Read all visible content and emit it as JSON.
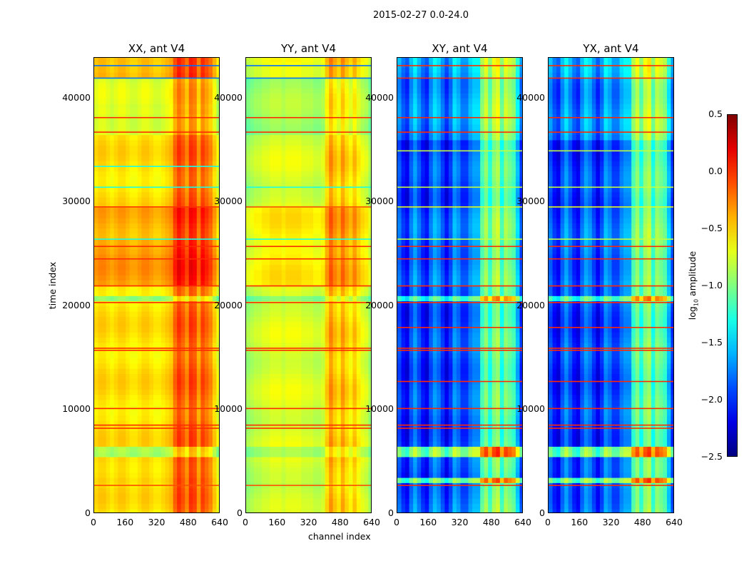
{
  "suptitle": "2015-02-27 0.0-24.0",
  "chart_data": {
    "type": "heatmap",
    "title": "2015-02-27 0.0-24.0",
    "xlabel": "channel index",
    "ylabel": "time index",
    "xlim": [
      0,
      640
    ],
    "ylim": [
      0,
      43900
    ],
    "xticks": [
      0,
      160,
      320,
      480,
      640
    ],
    "yticks": [
      0,
      10000,
      20000,
      30000,
      40000
    ],
    "colorbar": {
      "label_main": "log",
      "label_sub": "10",
      "label_rest": " amplitude",
      "range": [
        -2.5,
        0.5
      ],
      "ticks": [
        "0.5",
        "0.0",
        "−0.5",
        "−1.0",
        "−1.5",
        "−2.0",
        "−2.5"
      ],
      "tick_values": [
        0.5,
        0.0,
        -0.5,
        -1.0,
        -1.5,
        -2.0,
        -2.5
      ],
      "colormap": "jet"
    },
    "panels": [
      {
        "title": "XX, ant V4",
        "column_profile": [
          -0.55,
          -0.5,
          -0.5,
          -0.55,
          -0.6,
          -0.55,
          -0.5,
          -0.5,
          -0.55,
          -0.6,
          -0.6,
          -0.55,
          -0.5,
          -0.5,
          -0.55,
          -0.6,
          -0.6,
          -0.55,
          -0.5,
          -0.45,
          -0.2,
          -0.05,
          -0.15,
          -0.3,
          -0.05,
          -0.1,
          -0.35,
          -0.1,
          -0.2,
          -0.3,
          -0.5,
          -0.7
        ],
        "row_bands": [
          [
            0,
            2800,
            0
          ],
          [
            2800,
            5500,
            0.05
          ],
          [
            5500,
            6500,
            -0.35
          ],
          [
            20500,
            21000,
            -0.35
          ],
          [
            22000,
            26500,
            0.2
          ],
          [
            26500,
            29500,
            0.15
          ],
          [
            36500,
            39000,
            -0.15
          ],
          [
            39000,
            42000,
            -0.2
          ],
          [
            42000,
            43900,
            0.15
          ]
        ],
        "lines": [
          [
            2800,
            -0.1
          ],
          [
            8300,
            0.0
          ],
          [
            8600,
            0.0
          ],
          [
            10200,
            0.0
          ],
          [
            15800,
            0.0
          ],
          [
            16000,
            0.0
          ],
          [
            20400,
            0.0
          ],
          [
            22000,
            0.0
          ],
          [
            24600,
            0.0
          ],
          [
            25800,
            0.0
          ],
          [
            26500,
            -1.3
          ],
          [
            29600,
            0.0
          ],
          [
            31500,
            -1.3
          ],
          [
            33500,
            -1.3
          ],
          [
            36800,
            0.0
          ],
          [
            38200,
            0.0
          ],
          [
            42000,
            -1.8
          ],
          [
            43200,
            -1.8
          ]
        ]
      },
      {
        "title": "YY, ant V4",
        "column_profile": [
          -0.9,
          -0.85,
          -0.8,
          -0.8,
          -0.75,
          -0.75,
          -0.7,
          -0.7,
          -0.7,
          -0.75,
          -0.7,
          -0.7,
          -0.7,
          -0.7,
          -0.75,
          -0.75,
          -0.75,
          -0.8,
          -0.8,
          -0.75,
          -0.5,
          -0.3,
          -0.45,
          -0.55,
          -0.35,
          -0.5,
          -0.6,
          -0.45,
          -0.6,
          -0.7,
          -0.75,
          -0.9
        ],
        "row_bands": [
          [
            0,
            2800,
            -0.05
          ],
          [
            5500,
            6500,
            -0.2
          ],
          [
            20500,
            21000,
            -0.2
          ],
          [
            22000,
            29500,
            0.15
          ],
          [
            36500,
            42000,
            -0.15
          ],
          [
            42000,
            43900,
            0.1
          ]
        ],
        "lines": [
          [
            2800,
            -0.1
          ],
          [
            8300,
            0.0
          ],
          [
            8600,
            0.0
          ],
          [
            10200,
            0.0
          ],
          [
            15800,
            0.0
          ],
          [
            16000,
            0.0
          ],
          [
            20400,
            0.0
          ],
          [
            22000,
            0.0
          ],
          [
            24600,
            0.0
          ],
          [
            25800,
            0.0
          ],
          [
            26500,
            -1.3
          ],
          [
            29600,
            -0.1
          ],
          [
            31500,
            -1.3
          ],
          [
            36800,
            0.0
          ],
          [
            38200,
            0.0
          ],
          [
            42000,
            -1.8
          ],
          [
            43200,
            -1.8
          ]
        ]
      },
      {
        "title": "XY, ant V4",
        "column_profile": [
          -1.9,
          -2.1,
          -2.2,
          -1.9,
          -1.7,
          -1.9,
          -2.1,
          -2.2,
          -1.9,
          -1.7,
          -1.8,
          -2.0,
          -2.2,
          -2.0,
          -1.7,
          -1.8,
          -2.0,
          -2.0,
          -1.8,
          -1.7,
          -1.7,
          -1.2,
          -1.0,
          -1.3,
          -1.0,
          -0.9,
          -1.3,
          -1.0,
          -1.1,
          -1.2,
          -1.6,
          -2.0
        ],
        "row_bands": [
          [
            0,
            2800,
            0.1
          ],
          [
            2800,
            3300,
            0.9
          ],
          [
            5500,
            6500,
            0.9
          ],
          [
            20500,
            21000,
            0.7
          ],
          [
            22000,
            29500,
            0.1
          ],
          [
            36000,
            42000,
            0.2
          ],
          [
            42000,
            43900,
            0.3
          ]
        ],
        "lines": [
          [
            2800,
            0.0
          ],
          [
            8300,
            0.0
          ],
          [
            8600,
            0.0
          ],
          [
            10200,
            0.0
          ],
          [
            12800,
            0.0
          ],
          [
            15800,
            0.0
          ],
          [
            16000,
            0.0
          ],
          [
            18000,
            0.0
          ],
          [
            20400,
            0.0
          ],
          [
            22000,
            0.0
          ],
          [
            24600,
            0.0
          ],
          [
            25800,
            0.0
          ],
          [
            26500,
            -0.8
          ],
          [
            29600,
            -0.7
          ],
          [
            31500,
            -0.8
          ],
          [
            35000,
            -0.8
          ],
          [
            36800,
            0.0
          ],
          [
            38200,
            0.0
          ],
          [
            42000,
            0.0
          ],
          [
            43200,
            0.0
          ]
        ]
      },
      {
        "title": "YX, ant V4",
        "column_profile": [
          -1.9,
          -2.1,
          -2.2,
          -1.9,
          -1.7,
          -1.9,
          -2.1,
          -2.2,
          -1.9,
          -1.7,
          -1.8,
          -2.0,
          -2.2,
          -2.0,
          -1.7,
          -1.8,
          -2.0,
          -2.0,
          -1.8,
          -1.7,
          -1.7,
          -1.2,
          -1.0,
          -1.3,
          -1.0,
          -0.9,
          -1.3,
          -1.0,
          -1.1,
          -1.2,
          -1.6,
          -2.0
        ],
        "row_bands": [
          [
            0,
            2800,
            0.1
          ],
          [
            2800,
            3300,
            0.9
          ],
          [
            5500,
            6500,
            0.9
          ],
          [
            20500,
            21000,
            0.7
          ],
          [
            22000,
            29500,
            0.1
          ],
          [
            36000,
            42000,
            0.2
          ],
          [
            42000,
            43900,
            0.3
          ]
        ],
        "lines": [
          [
            2800,
            0.0
          ],
          [
            8300,
            0.0
          ],
          [
            8600,
            0.0
          ],
          [
            10200,
            0.0
          ],
          [
            12800,
            0.0
          ],
          [
            15800,
            0.0
          ],
          [
            16000,
            0.0
          ],
          [
            18000,
            0.0
          ],
          [
            20400,
            0.0
          ],
          [
            22000,
            0.0
          ],
          [
            24600,
            0.0
          ],
          [
            25800,
            0.0
          ],
          [
            26500,
            -0.8
          ],
          [
            29600,
            -0.7
          ],
          [
            31500,
            -0.8
          ],
          [
            35000,
            -0.8
          ],
          [
            36800,
            0.0
          ],
          [
            38200,
            0.0
          ],
          [
            42000,
            0.0
          ],
          [
            43200,
            0.0
          ]
        ]
      }
    ]
  }
}
